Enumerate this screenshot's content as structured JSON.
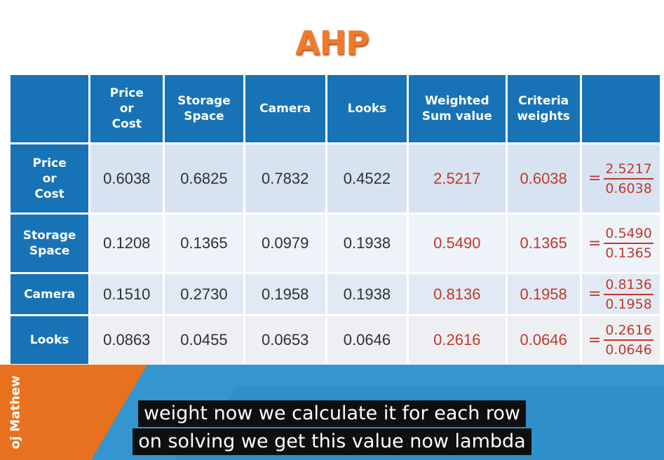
{
  "title": "AHP",
  "table": {
    "headers": [
      "",
      "Price\nor\nCost",
      "Storage\nSpace",
      "Camera",
      "Looks",
      "Weighted\nSum value",
      "Criteria\nweights",
      ""
    ],
    "rows": [
      {
        "label": "Price\nor\nCost",
        "values": [
          "0.6038",
          "0.6825",
          "0.7832",
          "0.4522"
        ],
        "weighted_sum": "2.5217",
        "criteria_weight": "0.6038",
        "frac_num": "2.5217",
        "frac_den": "0.6038"
      },
      {
        "label": "Storage\nSpace",
        "values": [
          "0.1208",
          "0.1365",
          "0.0979",
          "0.1938"
        ],
        "weighted_sum": "0.5490",
        "criteria_weight": "0.1365",
        "frac_num": "0.5490",
        "frac_den": "0.1365"
      },
      {
        "label": "Camera",
        "values": [
          "0.1510",
          "0.2730",
          "0.1958",
          "0.1938"
        ],
        "weighted_sum": "0.8136",
        "criteria_weight": "0.1958",
        "frac_num": "0.8136",
        "frac_den": "0.1958"
      },
      {
        "label": "Looks",
        "values": [
          "0.0863",
          "0.0455",
          "0.0653",
          "0.0646"
        ],
        "weighted_sum": "0.2616",
        "criteria_weight": "0.0646",
        "frac_num": "0.2616",
        "frac_den": "0.0646"
      }
    ],
    "equals_sign": "="
  },
  "author_watermark": "oj Mathew",
  "subtitles": {
    "line1": "weight now we calculate it for each row",
    "line2": "on solving we get this value now lambda"
  },
  "colors": {
    "header_blue": "#1773b5",
    "title_orange": "#f07a2a",
    "value_red": "#c0392b",
    "banner_blue": "#2f8fc8",
    "banner_orange": "#e8711f"
  }
}
